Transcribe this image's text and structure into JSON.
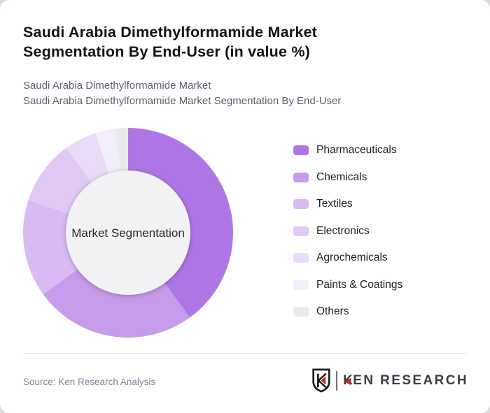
{
  "page": {
    "title_line1": "Saudi Arabia Dimethylformamide Market",
    "title_line2": "Segmentation By End-User (in value %)",
    "subtitle_line1": "Saudi Arabia Dimethylformamide Market",
    "subtitle_line2": "Saudi Arabia Dimethylformamide Market Segmentation By End-User"
  },
  "chart_data": {
    "type": "pie",
    "donut": true,
    "title": "Saudi Arabia Dimethylformamide Market Segmentation By End-User (in value %)",
    "center_label": "Market Segmentation",
    "start_angle_deg": 0,
    "direction": "clockwise",
    "legend_position": "right",
    "inner_circle_color": "#f2f1f3",
    "segments": [
      {
        "label": "Pharmaceuticals",
        "value": 40,
        "color": "#ae76e5"
      },
      {
        "label": "Chemicals",
        "value": 25,
        "color": "#c59bea"
      },
      {
        "label": "Textiles",
        "value": 15,
        "color": "#d9baf2"
      },
      {
        "label": "Electronics",
        "value": 10,
        "color": "#e1c9f6"
      },
      {
        "label": "Agrochemicals",
        "value": 5,
        "color": "#eadbf9"
      },
      {
        "label": "Paints & Coatings",
        "value": 3,
        "color": "#f4edfc"
      },
      {
        "label": "Others",
        "value": 2,
        "color": "#eae9ed"
      }
    ]
  },
  "footer": {
    "source": "Source: Ken Research Analysis",
    "logo_text": "KEN RESEARCH",
    "logo_red": "#c9242b",
    "logo_dark": "#1a1b1f"
  }
}
